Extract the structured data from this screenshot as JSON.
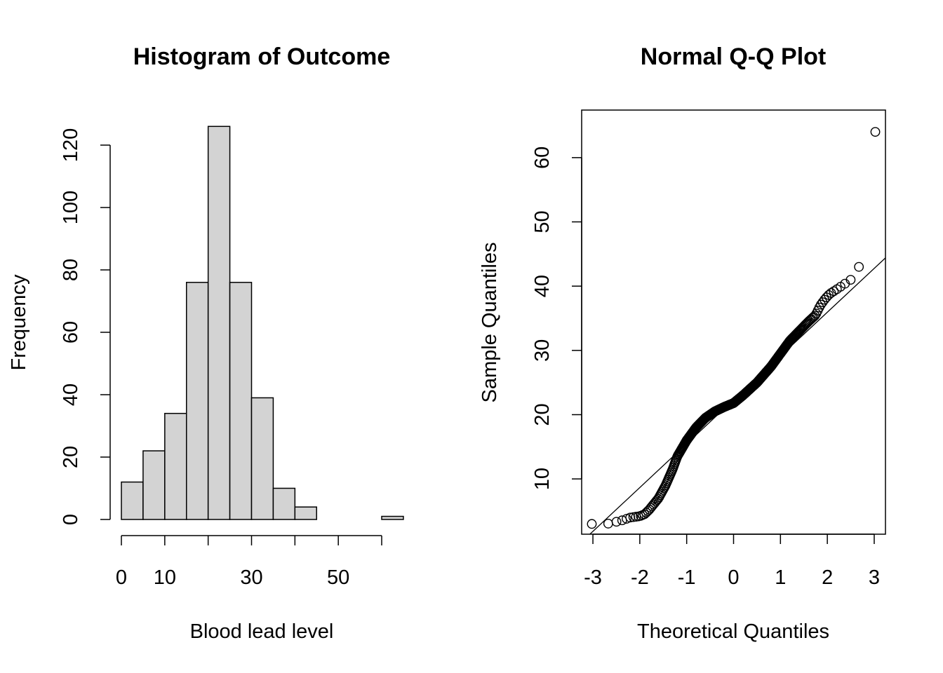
{
  "chart_data": [
    {
      "type": "bar",
      "title": "Histogram of Outcome",
      "xlabel": "Blood lead level",
      "ylabel": "Frequency",
      "bin_edges": [
        0,
        5,
        10,
        15,
        20,
        25,
        30,
        35,
        40,
        45,
        50,
        55,
        60,
        65
      ],
      "values": [
        12,
        22,
        34,
        76,
        126,
        76,
        39,
        10,
        4,
        0,
        0,
        0,
        1
      ],
      "xlim": [
        0,
        65
      ],
      "ylim": [
        0,
        126
      ],
      "x_ticks": [
        0,
        10,
        30,
        50
      ],
      "x_tick_marks": [
        0,
        10,
        20,
        30,
        40,
        50,
        60
      ],
      "x_tick_labels": [
        "0",
        "10",
        "30",
        "50"
      ],
      "y_ticks": [
        0,
        20,
        40,
        60,
        80,
        100,
        120
      ],
      "y_tick_labels": [
        "0",
        "20",
        "40",
        "60",
        "80",
        "100",
        "120"
      ],
      "bar_fill": "#d3d3d3"
    },
    {
      "type": "scatter",
      "title": "Normal Q-Q Plot",
      "xlabel": "Theoretical Quantiles",
      "ylabel": "Sample Quantiles",
      "xlim": [
        -3.24,
        3.24
      ],
      "ylim": [
        1.4,
        67.4
      ],
      "x_ticks": [
        -3,
        -2,
        -1,
        0,
        1,
        2,
        3
      ],
      "x_tick_labels": [
        "-3",
        "-2",
        "-1",
        "0",
        "1",
        "2",
        "3"
      ],
      "y_ticks": [
        10,
        20,
        30,
        40,
        50,
        60
      ],
      "y_tick_labels": [
        "10",
        "20",
        "30",
        "40",
        "50",
        "60"
      ],
      "reference_line": {
        "intercept": 22.3,
        "slope": 6.82
      },
      "knots": {
        "x": [
          -3.0,
          -2.7,
          -2.4,
          -2.2,
          -2.0,
          -1.9,
          -1.8,
          -1.6,
          -1.45,
          -1.3,
          -1.2,
          -1.0,
          -0.8,
          -0.6,
          -0.4,
          -0.2,
          0.0,
          0.2,
          0.5,
          0.8,
          1.0,
          1.2,
          1.4,
          1.6,
          1.75,
          1.85,
          1.95,
          2.05,
          2.2,
          2.4,
          2.5,
          2.7,
          3.0
        ],
        "y": [
          3.0,
          3.0,
          3.5,
          4.0,
          4.2,
          4.5,
          5.2,
          7.0,
          9.0,
          11.5,
          13.5,
          16.0,
          18.0,
          19.5,
          20.5,
          21.2,
          21.8,
          23.0,
          25.0,
          27.5,
          29.5,
          31.5,
          33.0,
          34.5,
          35.5,
          37.0,
          38.0,
          38.8,
          39.5,
          40.5,
          41.0,
          43.3,
          64.0
        ]
      }
    }
  ]
}
